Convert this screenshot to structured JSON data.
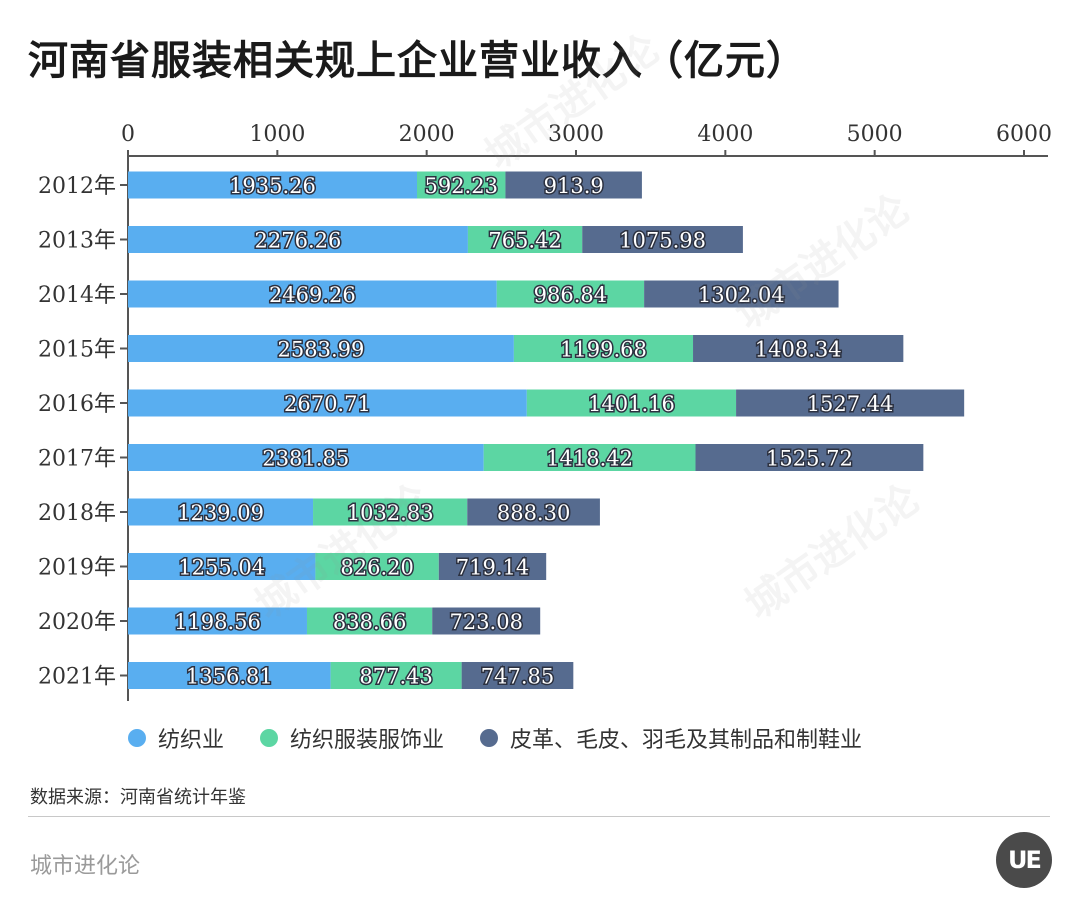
{
  "title": "河南省服装相关规上企业营业收入（亿元）",
  "colors": {
    "textile": "#59aef0",
    "apparel": "#5cd6a3",
    "leather": "#566b8f"
  },
  "legend": [
    {
      "label": "纺织业",
      "color": "#59aef0"
    },
    {
      "label": "纺织服装服饰业",
      "color": "#5cd6a3"
    },
    {
      "label": "皮革、毛皮、羽毛及其制品和制鞋业",
      "color": "#566b8f"
    }
  ],
  "source": "数据来源：河南省统计年鉴",
  "brand": "城市进化论",
  "logo_text": "UE",
  "watermark_text": "城市进化论",
  "chart_data": {
    "type": "bar",
    "orientation": "horizontal",
    "stacked": true,
    "title": "河南省服装相关规上企业营业收入（亿元）",
    "categories": [
      "2012年",
      "2013年",
      "2014年",
      "2015年",
      "2016年",
      "2017年",
      "2018年",
      "2019年",
      "2020年",
      "2021年"
    ],
    "series": [
      {
        "name": "纺织业",
        "color": "#59aef0",
        "values": [
          1935.26,
          2276.26,
          2469.26,
          2583.99,
          2670.71,
          2381.85,
          1239.09,
          1255.04,
          1198.56,
          1356.81
        ],
        "labels": [
          "1935.26",
          "2276.26",
          "2469.26",
          "2583.99",
          "2670.71",
          "2381.85",
          "1239.09",
          "1255.04",
          "1198.56",
          "1356.81"
        ]
      },
      {
        "name": "纺织服装服饰业",
        "color": "#5cd6a3",
        "values": [
          592.23,
          765.42,
          986.84,
          1199.68,
          1401.16,
          1418.42,
          1032.83,
          826.2,
          838.66,
          877.43
        ],
        "labels": [
          "592.23",
          "765.42",
          "986.84",
          "1199.68",
          "1401.16",
          "1418.42",
          "1032.83",
          "826.20",
          "838.66",
          "877.43"
        ]
      },
      {
        "name": "皮革、毛皮、羽毛及其制品和制鞋业",
        "color": "#566b8f",
        "values": [
          913.9,
          1075.98,
          1302.04,
          1408.34,
          1527.44,
          1525.72,
          888.3,
          719.14,
          723.08,
          747.85
        ],
        "labels": [
          "913.9",
          "1075.98",
          "1302.04",
          "1408.34",
          "1527.44",
          "1525.72",
          "888.30",
          "719.14",
          "723.08",
          "747.85"
        ]
      }
    ],
    "xlim": [
      0,
      6000
    ],
    "xticks": [
      0,
      1000,
      2000,
      3000,
      4000,
      5000,
      6000
    ],
    "xaxis_position": "top",
    "legend_position": "bottom",
    "grid": false
  }
}
